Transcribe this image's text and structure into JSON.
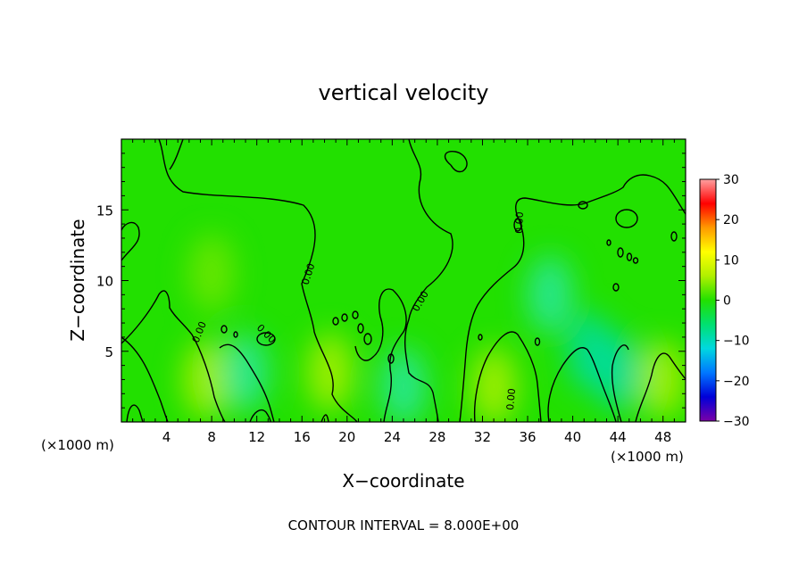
{
  "chart_data": {
    "type": "heatmap",
    "title": "vertical velocity",
    "xlabel": "X−coordinate",
    "ylabel": "Z−coordinate",
    "x_unit": "(×1000 m)",
    "y_unit": "(×1000 m)",
    "xlim": [
      0,
      50
    ],
    "ylim": [
      0,
      20
    ],
    "x_ticks": [
      4,
      8,
      12,
      16,
      20,
      24,
      28,
      32,
      36,
      40,
      44,
      48
    ],
    "x_tick_labels": [
      "4",
      "8",
      "12",
      "16",
      "20",
      "24",
      "28",
      "32",
      "36",
      "40",
      "44",
      "48"
    ],
    "y_ticks": [
      5,
      10,
      15
    ],
    "y_tick_labels": [
      "5",
      "10",
      "15"
    ],
    "colorbar": {
      "min": -30,
      "max": 30,
      "ticks": [
        30,
        20,
        10,
        0,
        -10,
        -20,
        -30
      ],
      "tick_labels": [
        "30",
        "20",
        "10",
        "0",
        "−10",
        "−20",
        "−30"
      ],
      "colors": [
        "#7a00a8",
        "#0000d8",
        "#0077ff",
        "#00d8e0",
        "#00e070",
        "#22e000",
        "#b0f000",
        "#ffff00",
        "#ff9900",
        "#ff0000",
        "#ffa0a0"
      ]
    },
    "field_description": "Mostly near-zero vertical velocity (green, about 0 to +5) with slightly positive (yellow-green) updraft columns near x = 8, 20, 33, 48 and slightly negative (cyan) pockets near x = 10-12, 25, 40-44 in the lower layer (z < 8).",
    "hotspots": [
      {
        "x": 7.5,
        "z": 3.0,
        "value": 6
      },
      {
        "x": 18.5,
        "z": 3.5,
        "value": 5
      },
      {
        "x": 33.0,
        "z": 2.5,
        "value": 6
      },
      {
        "x": 48.0,
        "z": 3.0,
        "value": 5
      },
      {
        "x": 11.0,
        "z": 3.5,
        "value": -3
      },
      {
        "x": 25.0,
        "z": 2.5,
        "value": -3
      },
      {
        "x": 41.5,
        "z": 5.0,
        "value": -4
      },
      {
        "x": 44.0,
        "z": 3.5,
        "value": -5
      },
      {
        "x": 8.0,
        "z": 10.5,
        "value": 3
      },
      {
        "x": 38.0,
        "z": 9.0,
        "value": -1
      }
    ],
    "contour_level": 0.0,
    "contour_labels": [
      "0.00",
      "0.00",
      "0.00",
      "0.00",
      "0.00",
      "0.00",
      "0.00"
    ],
    "footer": "CONTOUR INTERVAL = 8.000E+00"
  }
}
